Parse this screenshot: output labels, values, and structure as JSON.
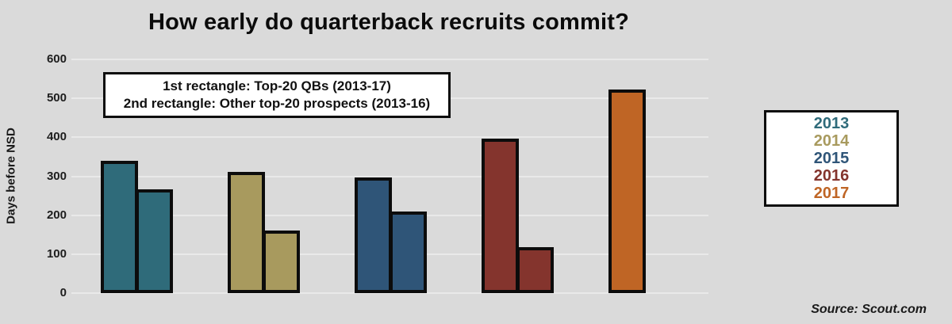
{
  "title": "How early do quarterback recruits commit?",
  "y_axis_label": "Days before NSD",
  "annotation": {
    "line1": "1st rectangle: Top-20 QBs (2013-17)",
    "line2": "2nd rectangle: Other top-20 prospects (2013-16)"
  },
  "source": "Source: Scout.com",
  "legend": {
    "items": [
      {
        "label": "2013",
        "color": "#2F6B7A"
      },
      {
        "label": "2014",
        "color": "#A89A5E"
      },
      {
        "label": "2015",
        "color": "#2F5578"
      },
      {
        "label": "2016",
        "color": "#84342D"
      },
      {
        "label": "2017",
        "color": "#BF6525"
      }
    ]
  },
  "chart_data": {
    "type": "bar",
    "title": "How early do quarterback recruits commit?",
    "xlabel": "",
    "ylabel": "Days before NSD",
    "ylim": [
      0,
      600
    ],
    "yticks": [
      0,
      100,
      200,
      300,
      400,
      500,
      600
    ],
    "grid": true,
    "legend_position": "right",
    "categories": [
      "2013",
      "2014",
      "2015",
      "2016",
      "2017"
    ],
    "series": [
      {
        "name": "Top-20 QBs (2013-17)",
        "values": [
          340,
          312,
          297,
          397,
          523
        ]
      },
      {
        "name": "Other top-20 prospects (2013-16)",
        "values": [
          267,
          160,
          210,
          117,
          null
        ]
      }
    ],
    "colors": {
      "2013": "#2F6B7A",
      "2014": "#A89A5E",
      "2015": "#2F5578",
      "2016": "#84342D",
      "2017": "#BF6525"
    },
    "background": "#dadada",
    "gridline_color": "#e9e9e9"
  }
}
